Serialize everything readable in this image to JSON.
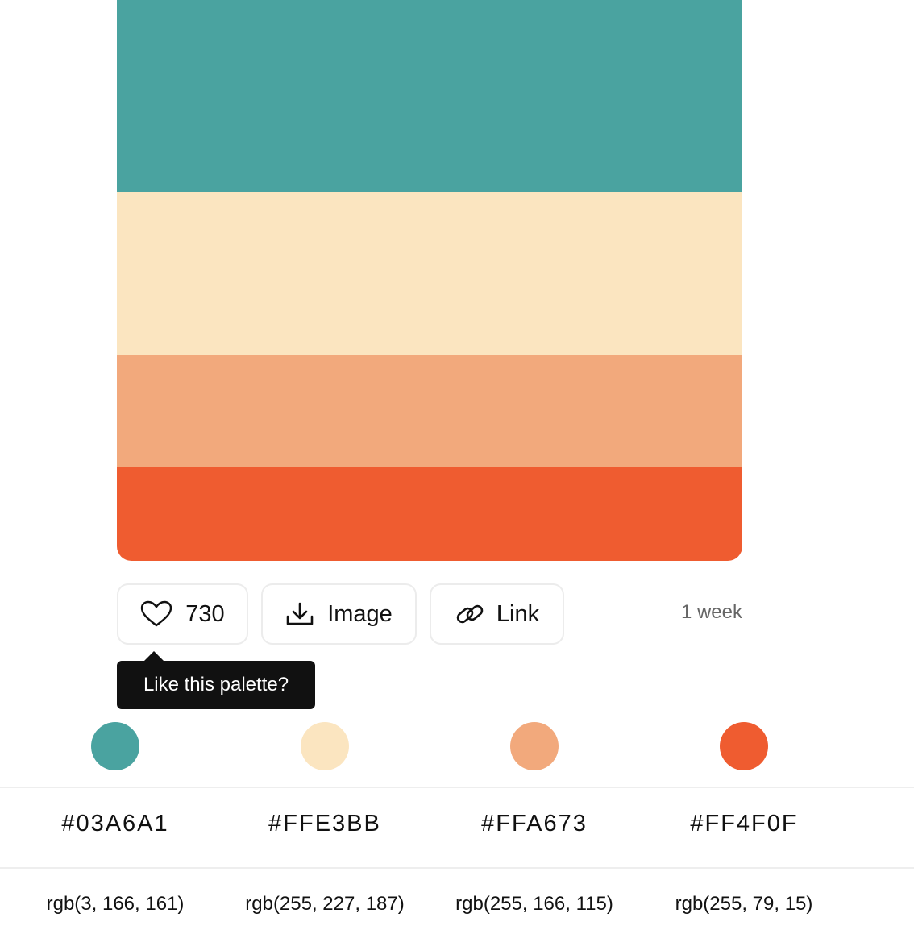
{
  "palette": {
    "colors": [
      "#4AA3A0",
      "#FBE5C0",
      "#F2A97C",
      "#EF5C30"
    ]
  },
  "actions": {
    "likes_count": "730",
    "image_label": "Image",
    "link_label": "Link",
    "age": "1 week"
  },
  "tooltip": {
    "text": "Like this palette?"
  },
  "swatches": [
    {
      "hex": "#03A6A1",
      "rgb": "rgb(3, 166, 161)",
      "dot_color": "#4AA3A0"
    },
    {
      "hex": "#FFE3BB",
      "rgb": "rgb(255, 227, 187)",
      "dot_color": "#FBE5C0"
    },
    {
      "hex": "#FFA673",
      "rgb": "rgb(255, 166, 115)",
      "dot_color": "#F2A97C"
    },
    {
      "hex": "#FF4F0F",
      "rgb": "rgb(255, 79, 15)",
      "dot_color": "#EF5C30"
    }
  ],
  "icons": {
    "like": "heart-icon",
    "image": "download-icon",
    "link": "link-icon"
  }
}
